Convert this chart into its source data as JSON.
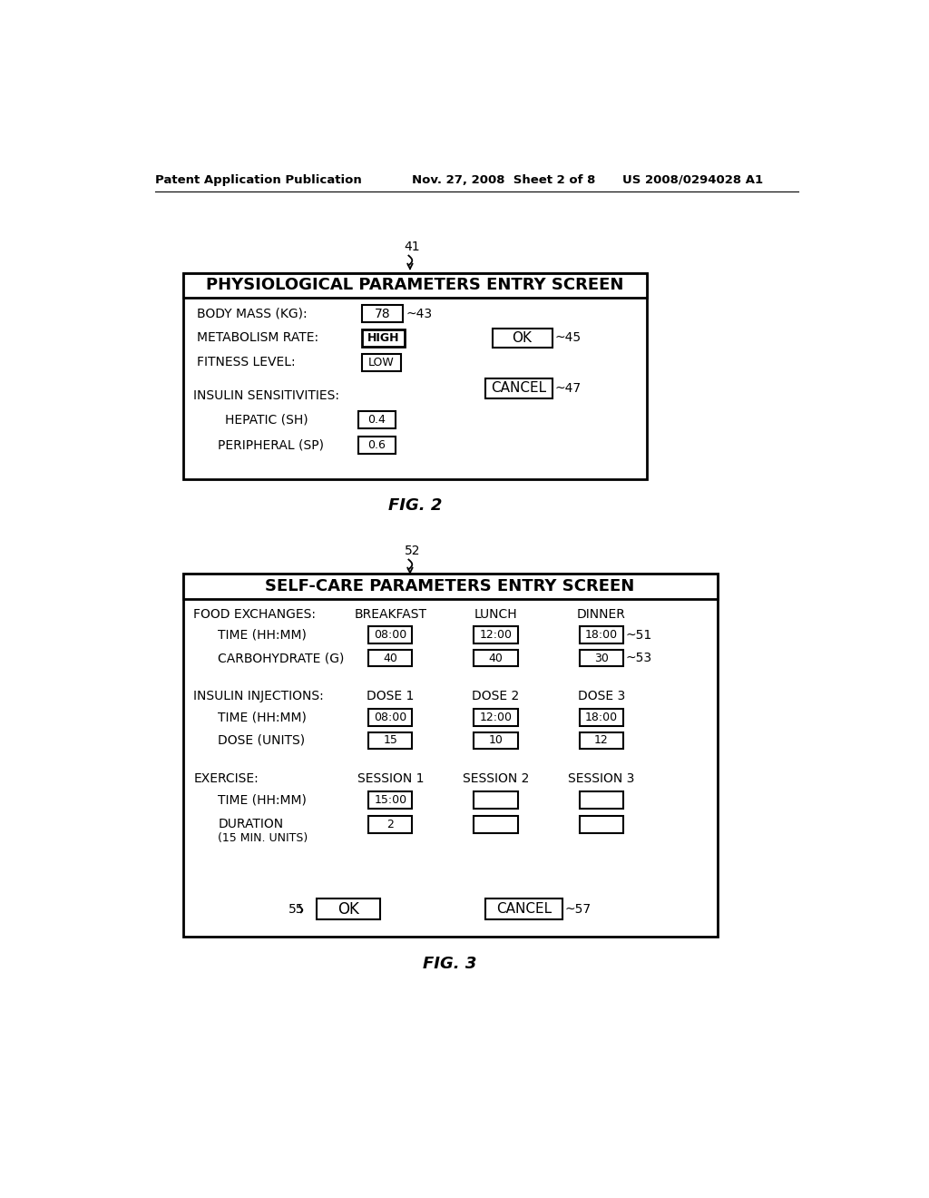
{
  "header_left": "Patent Application Publication",
  "header_mid": "Nov. 27, 2008  Sheet 2 of 8",
  "header_right": "US 2008/0294028 A1",
  "fig2_title": "PHYSIOLOGICAL PARAMETERS ENTRY SCREEN",
  "fig2_label": "FIG. 2",
  "fig2_ref": "41",
  "fig3_title": "SELF-CARE PARAMETERS ENTRY SCREEN",
  "fig3_label": "FIG. 3",
  "fig3_ref": "52",
  "bg_color": "#ffffff",
  "fg_color": "#000000"
}
